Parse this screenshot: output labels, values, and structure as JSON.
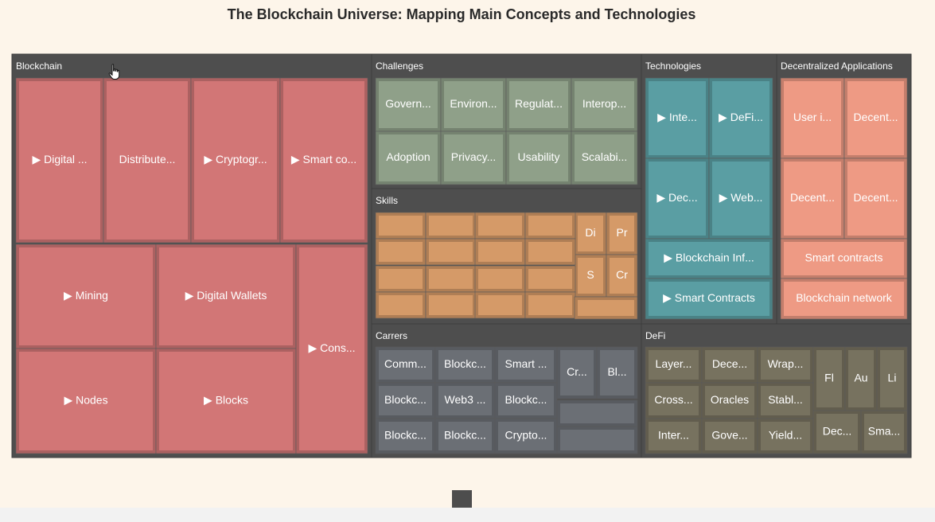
{
  "chart_data": {
    "type": "treemap",
    "title": "The Blockchain Universe: Mapping Main Concepts and Technologies",
    "groups": [
      {
        "name": "Blockchain",
        "color": "#d27676",
        "leaves": [
          {
            "label": "▶ Digital ..."
          },
          {
            "label": "Distribute..."
          },
          {
            "label": "▶ Cryptogr..."
          },
          {
            "label": "▶ Smart co..."
          },
          {
            "label": "▶ Mining"
          },
          {
            "label": "▶ Digital Wallets"
          },
          {
            "label": "▶ Nodes"
          },
          {
            "label": "▶ Blocks"
          },
          {
            "label": "▶ Cons..."
          }
        ]
      },
      {
        "name": "Challenges",
        "color": "#8fa089",
        "leaves": [
          {
            "label": "Govern..."
          },
          {
            "label": "Environ..."
          },
          {
            "label": "Regulat..."
          },
          {
            "label": "Interop..."
          },
          {
            "label": "Adoption"
          },
          {
            "label": "Privacy..."
          },
          {
            "label": "Usability"
          },
          {
            "label": "Scalabi..."
          }
        ]
      },
      {
        "name": "Skills",
        "color": "#d59a68",
        "leaves": [
          {
            "label": "Di"
          },
          {
            "label": "Pr"
          },
          {
            "label": "S"
          },
          {
            "label": "Cr"
          }
        ]
      },
      {
        "name": "Carrers",
        "color": "#6b6f75",
        "leaves": [
          {
            "label": "Comm..."
          },
          {
            "label": "Blockc..."
          },
          {
            "label": "Smart ..."
          },
          {
            "label": "Blockc..."
          },
          {
            "label": "Web3 ..."
          },
          {
            "label": "Blockc..."
          },
          {
            "label": "Blockc..."
          },
          {
            "label": "Blockc..."
          },
          {
            "label": "Crypto..."
          },
          {
            "label": "Cr..."
          },
          {
            "label": "Bl..."
          }
        ]
      },
      {
        "name": "Technologies",
        "color": "#5a9ea3",
        "leaves": [
          {
            "label": "▶ Inte..."
          },
          {
            "label": "▶ DeFi..."
          },
          {
            "label": "▶ Dec..."
          },
          {
            "label": "▶ Web..."
          },
          {
            "label": "▶ Blockchain Inf..."
          },
          {
            "label": "▶ Smart Contracts"
          }
        ]
      },
      {
        "name": "Decentralized Applications",
        "color": "#ee9a84",
        "leaves": [
          {
            "label": "User i..."
          },
          {
            "label": "Decent..."
          },
          {
            "label": "Decent..."
          },
          {
            "label": "Decent..."
          },
          {
            "label": "Smart contracts"
          },
          {
            "label": "Blockchain network"
          }
        ]
      },
      {
        "name": "DeFi",
        "color": "#77725f",
        "leaves": [
          {
            "label": "Layer..."
          },
          {
            "label": "Dece..."
          },
          {
            "label": "Wrap..."
          },
          {
            "label": "Cross..."
          },
          {
            "label": "Oracles"
          },
          {
            "label": "Stabl..."
          },
          {
            "label": "Inter..."
          },
          {
            "label": "Gove..."
          },
          {
            "label": "Yield..."
          },
          {
            "label": "Fl"
          },
          {
            "label": "Au"
          },
          {
            "label": "Li"
          },
          {
            "label": "Dec..."
          },
          {
            "label": "Sma..."
          }
        ]
      }
    ]
  }
}
